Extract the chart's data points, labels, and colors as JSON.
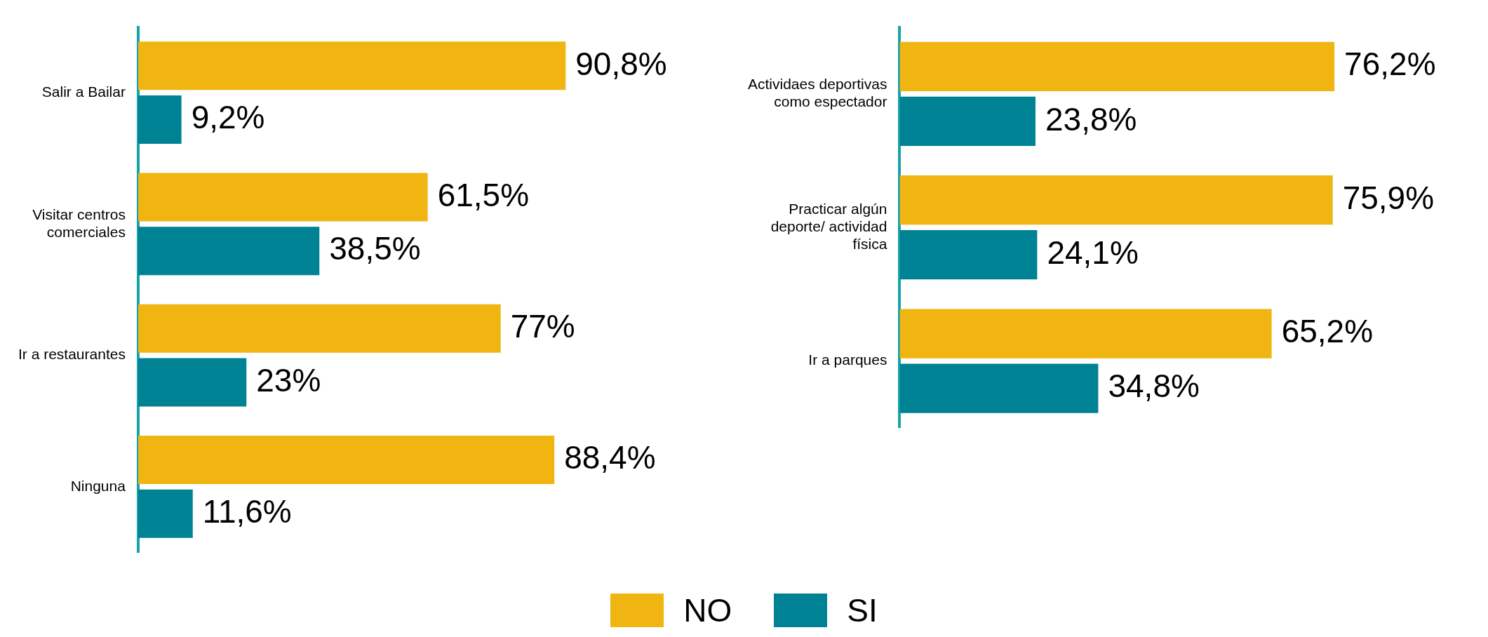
{
  "chart_data": [
    {
      "type": "bar",
      "orientation": "horizontal",
      "categories": [
        "Salir a Bailar",
        "Visitar centros\ncomerciales",
        "Ir a restaurantes",
        "Ninguna"
      ],
      "series": [
        {
          "name": "NO",
          "color": "#f0b510",
          "values": [
            90.8,
            61.5,
            77,
            88.4
          ],
          "value_labels": [
            "90,8%",
            "61,5%",
            "77%",
            "88,4%"
          ]
        },
        {
          "name": "SI",
          "color": "#008295",
          "values": [
            9.2,
            38.5,
            23,
            11.6
          ],
          "value_labels": [
            "9,2%",
            "38,5%",
            "23%",
            "11,6%"
          ]
        }
      ],
      "tick_labels": "y",
      "grid": false,
      "legend": "bottom"
    },
    {
      "type": "bar",
      "orientation": "horizontal",
      "categories": [
        "Actividaes deportivas\ncomo espectador",
        "Practicar algún\ndeporte/ actividad\nfísica",
        "Ir a parques"
      ],
      "series": [
        {
          "color": "#f0b510",
          "values": [
            76.2,
            75.9,
            65.2
          ],
          "value_labels": [
            "76,2%",
            "75,9%",
            "65,2%"
          ]
        },
        {
          "color": "#008295",
          "values": [
            23.8,
            24.1,
            34.8
          ],
          "value_labels": [
            "23,8%",
            "24,1%",
            "34,8%"
          ]
        }
      ],
      "tick_labels": "y",
      "grid": false
    }
  ]
}
